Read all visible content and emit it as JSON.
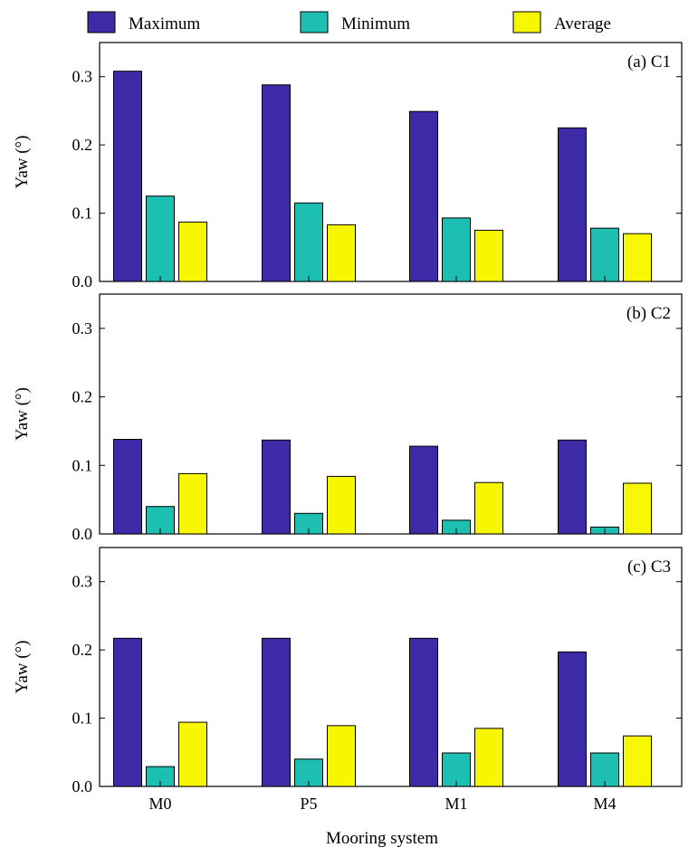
{
  "chart_data": {
    "type": "bar",
    "categories": [
      "M0",
      "P5",
      "M1",
      "M4"
    ],
    "xlabel": "Mooring system",
    "legend": {
      "placement": "top"
    },
    "series_style": [
      {
        "name": "Maximum",
        "color": "#3c2aa6"
      },
      {
        "name": "Minimum",
        "color": "#1dbfb2"
      },
      {
        "name": "Average",
        "color": "#f7f700"
      }
    ],
    "ylim": [
      0,
      0.35
    ],
    "yticks": [
      "0.0",
      "0.1",
      "0.2",
      "0.3"
    ],
    "grid": false,
    "panels": [
      {
        "label": "(a) C1",
        "ylabel": "Yaw (°)",
        "series": [
          {
            "name": "Maximum",
            "values": [
              0.308,
              0.288,
              0.249,
              0.225
            ]
          },
          {
            "name": "Minimum",
            "values": [
              0.125,
              0.115,
              0.093,
              0.078
            ]
          },
          {
            "name": "Average",
            "values": [
              0.087,
              0.083,
              0.075,
              0.07
            ]
          }
        ]
      },
      {
        "label": "(b) C2",
        "ylabel": "Yaw (°)",
        "series": [
          {
            "name": "Maximum",
            "values": [
              0.138,
              0.137,
              0.128,
              0.137
            ]
          },
          {
            "name": "Minimum",
            "values": [
              0.04,
              0.03,
              0.02,
              0.01
            ]
          },
          {
            "name": "Average",
            "values": [
              0.088,
              0.084,
              0.075,
              0.074
            ]
          }
        ]
      },
      {
        "label": "(c) C3",
        "ylabel": "Yaw (°)",
        "series": [
          {
            "name": "Maximum",
            "values": [
              0.217,
              0.217,
              0.217,
              0.197
            ]
          },
          {
            "name": "Minimum",
            "values": [
              0.029,
              0.04,
              0.049,
              0.049
            ]
          },
          {
            "name": "Average",
            "values": [
              0.094,
              0.089,
              0.085,
              0.074
            ]
          }
        ]
      }
    ]
  }
}
